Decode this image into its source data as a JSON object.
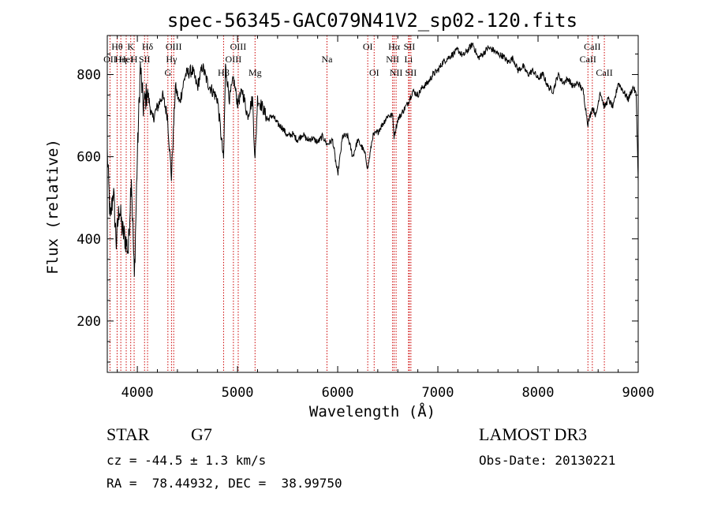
{
  "chart_data": {
    "type": "line",
    "title": "spec-56345-GAC079N41V2_sp02-120.fits",
    "xlabel": "Wavelength (Å)",
    "ylabel": "Flux (relative)",
    "xlim": [
      3700,
      9000
    ],
    "ylim": [
      75,
      895
    ],
    "xticks": [
      4000,
      5000,
      6000,
      7000,
      8000,
      9000
    ],
    "yticks": [
      200,
      400,
      600,
      800
    ],
    "grid": false,
    "series": [
      {
        "name": "spectrum",
        "x": [
          3700,
          3730,
          3760,
          3790,
          3820,
          3850,
          3880,
          3910,
          3940,
          3970,
          4000,
          4030,
          4060,
          4100,
          4150,
          4200,
          4250,
          4300,
          4340,
          4380,
          4420,
          4480,
          4550,
          4600,
          4650,
          4700,
          4750,
          4800,
          4861,
          4880,
          4920,
          4960,
          5000,
          5050,
          5100,
          5150,
          5175,
          5200,
          5250,
          5300,
          5350,
          5400,
          5450,
          5500,
          5550,
          5600,
          5650,
          5700,
          5750,
          5800,
          5850,
          5893,
          5950,
          6000,
          6050,
          6100,
          6150,
          6200,
          6250,
          6280,
          6300,
          6350,
          6400,
          6450,
          6500,
          6550,
          6563,
          6600,
          6650,
          6700,
          6750,
          6800,
          6850,
          6900,
          6950,
          7000,
          7050,
          7100,
          7150,
          7200,
          7250,
          7300,
          7350,
          7400,
          7450,
          7500,
          7550,
          7600,
          7650,
          7700,
          7750,
          7800,
          7850,
          7900,
          7950,
          8000,
          8050,
          8100,
          8150,
          8200,
          8250,
          8300,
          8350,
          8400,
          8450,
          8498,
          8542,
          8580,
          8620,
          8662,
          8700,
          8750,
          8800,
          8850,
          8900,
          8950,
          8980,
          9000
        ],
        "y": [
          610,
          440,
          520,
          390,
          480,
          420,
          400,
          370,
          560,
          300,
          600,
          820,
          720,
          760,
          690,
          720,
          750,
          700,
          550,
          770,
          730,
          800,
          810,
          770,
          820,
          780,
          760,
          740,
          590,
          820,
          740,
          790,
          730,
          760,
          700,
          740,
          590,
          740,
          720,
          690,
          700,
          680,
          670,
          650,
          655,
          640,
          655,
          640,
          645,
          635,
          650,
          630,
          640,
          555,
          650,
          650,
          600,
          640,
          620,
          600,
          570,
          650,
          660,
          680,
          700,
          700,
          650,
          690,
          710,
          730,
          760,
          750,
          770,
          780,
          800,
          810,
          830,
          840,
          850,
          860,
          845,
          860,
          875,
          840,
          850,
          865,
          860,
          850,
          845,
          830,
          840,
          810,
          820,
          800,
          810,
          790,
          800,
          770,
          760,
          800,
          780,
          790,
          770,
          780,
          760,
          680,
          720,
          700,
          760,
          720,
          740,
          720,
          780,
          760,
          740,
          770,
          750,
          540
        ]
      }
    ],
    "spectral_lines": [
      {
        "label": "OII",
        "wl": 3727
      },
      {
        "label": "Hθ",
        "wl": 3798
      },
      {
        "label": "Hη",
        "wl": 3835
      },
      {
        "label": "HeI",
        "wl": 3889
      },
      {
        "label": "K",
        "wl": 3934
      },
      {
        "label": "H",
        "wl": 3968
      },
      {
        "label": "SII",
        "wl": 4072
      },
      {
        "label": "Hδ",
        "wl": 4102
      },
      {
        "label": "G",
        "wl": 4305
      },
      {
        "label": "Hγ",
        "wl": 4341
      },
      {
        "label": "OIII",
        "wl": 4363
      },
      {
        "label": "Hβ",
        "wl": 4861
      },
      {
        "label": "OIII",
        "wl": 4959
      },
      {
        "label": "OIII",
        "wl": 5007
      },
      {
        "label": "Mg",
        "wl": 5175
      },
      {
        "label": "Na",
        "wl": 5893
      },
      {
        "label": "OI",
        "wl": 6300
      },
      {
        "label": "OI",
        "wl": 6364
      },
      {
        "label": "NII",
        "wl": 6548
      },
      {
        "label": "Hα",
        "wl": 6563
      },
      {
        "label": "NII",
        "wl": 6583
      },
      {
        "label": "Li",
        "wl": 6707
      },
      {
        "label": "SII",
        "wl": 6716
      },
      {
        "label": "SII",
        "wl": 6731
      },
      {
        "label": "CaII",
        "wl": 8498
      },
      {
        "label": "CaII",
        "wl": 8542
      },
      {
        "label": "CaII",
        "wl": 8662
      }
    ],
    "line_color": "#000000",
    "marker_color": "#cc0000"
  },
  "info": {
    "object_class": "STAR",
    "subclass": "G7",
    "redshift": "cz = -44.5 ± 1.3 km/s",
    "coords": "RA =  78.44932, DEC =  38.99750",
    "survey": "LAMOST DR3",
    "obs_date": "Obs-Date: 20130221"
  }
}
